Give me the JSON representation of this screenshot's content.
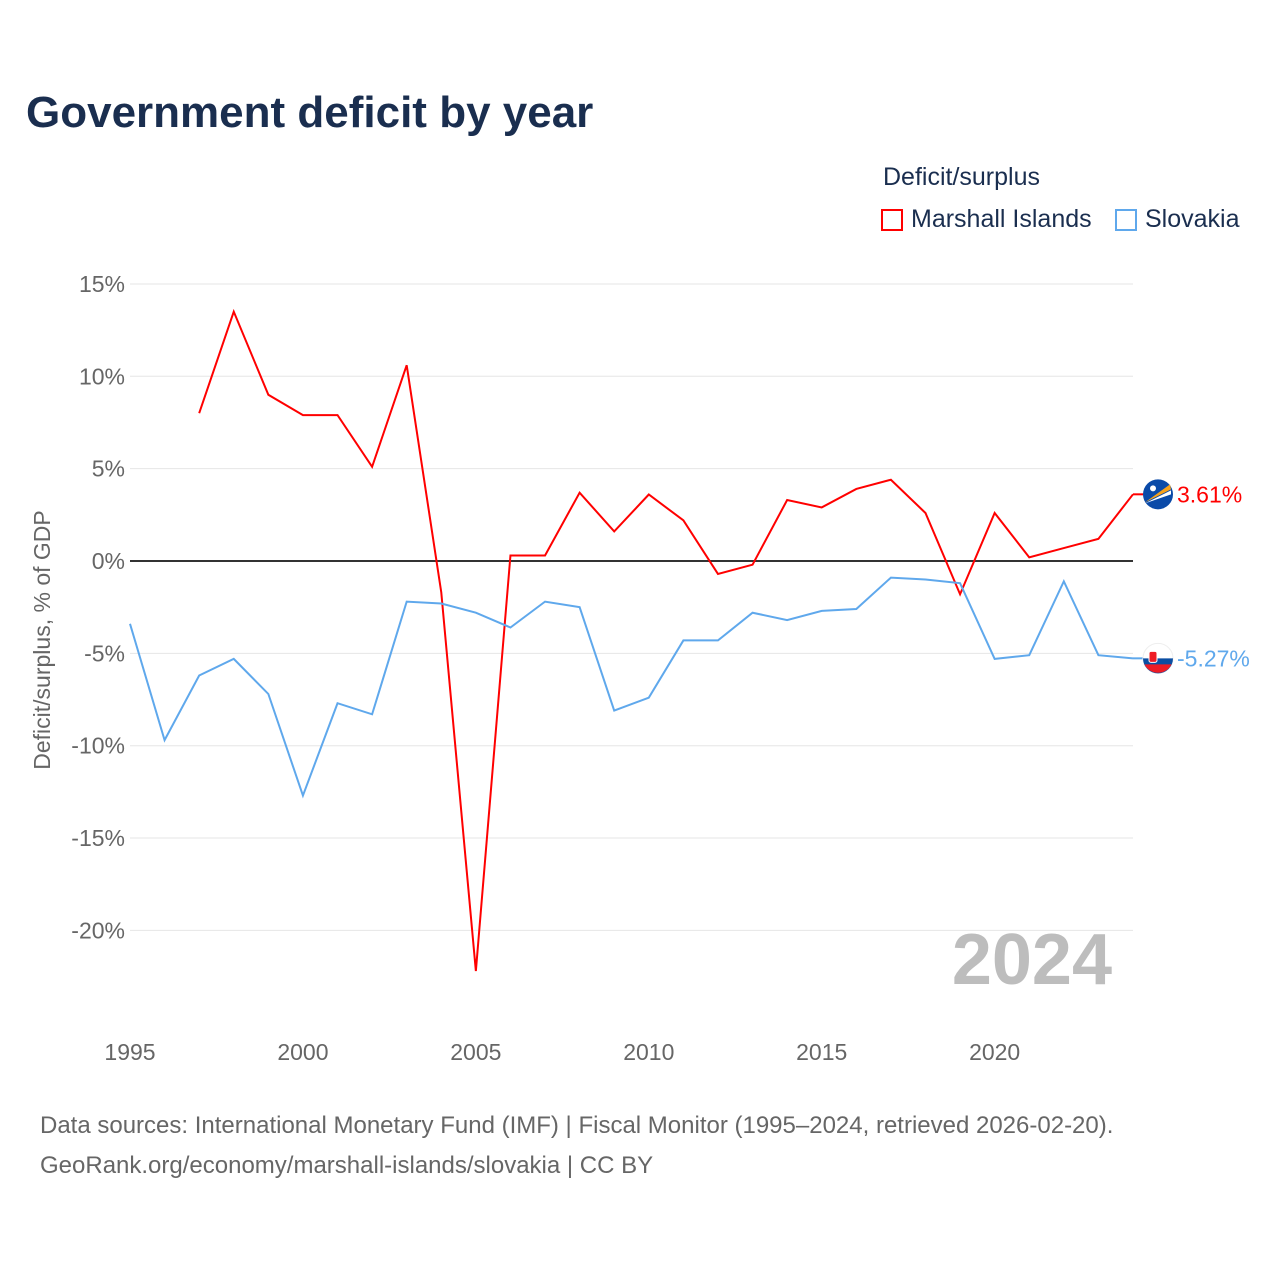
{
  "title": "Government deficit by year",
  "legend": {
    "title": "Deficit/surplus",
    "items": [
      {
        "label": "Marshall Islands",
        "color": "#ff0000"
      },
      {
        "label": "Slovakia",
        "color": "#5fa8ec"
      }
    ]
  },
  "watermark_year": "2024",
  "footer": {
    "line1": "Data sources: International Monetary Fund (IMF) | Fiscal Monitor (1995–2024, retrieved 2026-02-20).",
    "line2": "GeoRank.org/economy/marshall-islands/slovakia | CC BY"
  },
  "chart_data": {
    "type": "line",
    "title": "Government deficit by year",
    "xlabel": "",
    "ylabel": "Deficit/surplus, % of GDP",
    "xlim": [
      1995,
      2024
    ],
    "ylim": [
      -25,
      15
    ],
    "x_ticks": [
      1995,
      2000,
      2005,
      2010,
      2015,
      2020
    ],
    "y_ticks": [
      15,
      10,
      5,
      0,
      -5,
      -10,
      -15,
      -20
    ],
    "y_tick_labels": [
      "15%",
      "10%",
      "5%",
      "0%",
      "-5%",
      "-10%",
      "-15%",
      "-20%"
    ],
    "legend_position": "top-right",
    "series": [
      {
        "name": "Marshall Islands",
        "color": "#ff0000",
        "end_label": "3.61%",
        "x": [
          1997,
          1998,
          1999,
          2000,
          2001,
          2002,
          2003,
          2004,
          2005,
          2006,
          2007,
          2008,
          2009,
          2010,
          2011,
          2012,
          2013,
          2014,
          2015,
          2016,
          2017,
          2018,
          2019,
          2020,
          2021,
          2022,
          2023,
          2024
        ],
        "values": [
          8.0,
          13.5,
          9.0,
          7.9,
          7.9,
          5.1,
          10.6,
          -1.7,
          -22.2,
          0.3,
          0.3,
          3.7,
          1.6,
          3.6,
          2.2,
          -0.7,
          -0.2,
          3.3,
          2.9,
          3.9,
          4.4,
          2.6,
          -1.8,
          2.6,
          0.2,
          0.7,
          1.2,
          3.61
        ]
      },
      {
        "name": "Slovakia",
        "color": "#5fa8ec",
        "end_label": "-5.27%",
        "x": [
          1995,
          1996,
          1997,
          1998,
          1999,
          2000,
          2001,
          2002,
          2003,
          2004,
          2005,
          2006,
          2007,
          2008,
          2009,
          2010,
          2011,
          2012,
          2013,
          2014,
          2015,
          2016,
          2017,
          2018,
          2019,
          2020,
          2021,
          2022,
          2023,
          2024
        ],
        "values": [
          -3.4,
          -9.7,
          -6.2,
          -5.3,
          -7.2,
          -12.7,
          -7.7,
          -8.3,
          -2.2,
          -2.3,
          -2.8,
          -3.6,
          -2.2,
          -2.5,
          -8.1,
          -7.4,
          -4.3,
          -4.3,
          -2.8,
          -3.2,
          -2.7,
          -2.6,
          -0.9,
          -1.0,
          -1.2,
          -5.3,
          -5.1,
          -1.1,
          -5.1,
          -5.27
        ]
      }
    ]
  }
}
